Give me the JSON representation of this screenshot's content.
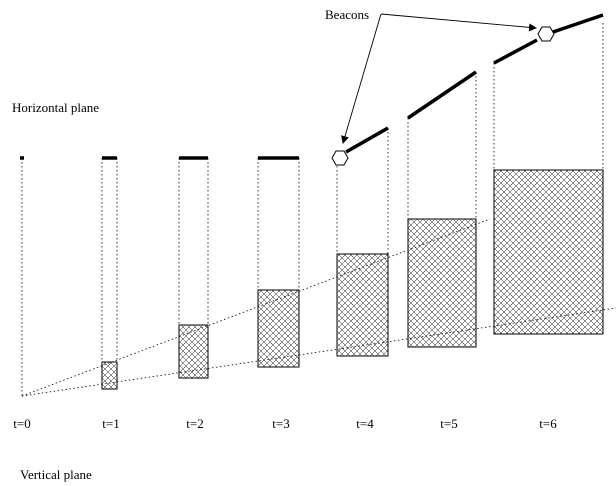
{
  "labels": {
    "horizontal_plane": "Horizontal plane",
    "vertical_plane": "Vertical plane",
    "beacons": "Beacons"
  },
  "steps": [
    {
      "label": "t=0"
    },
    {
      "label": "t=1"
    },
    {
      "label": "t=2"
    },
    {
      "label": "t=3"
    },
    {
      "label": "t=4",
      "beacon": true
    },
    {
      "label": "t=5"
    },
    {
      "label": "t=6",
      "beacon": true
    }
  ]
}
